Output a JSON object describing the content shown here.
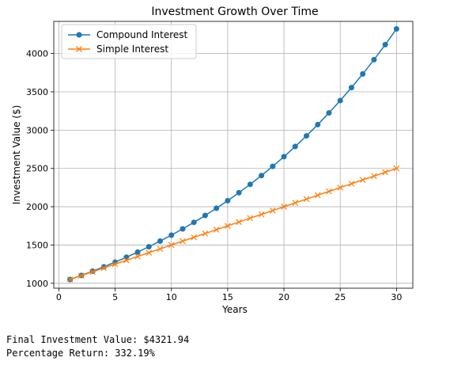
{
  "chart_data": {
    "type": "line",
    "title": "Investment Growth Over Time",
    "xlabel": "Years",
    "ylabel": "Investment Value ($)",
    "xlim": [
      -0.45,
      31.45
    ],
    "ylim": [
      936,
      4420
    ],
    "xticks": [
      0,
      5,
      10,
      15,
      20,
      25,
      30
    ],
    "yticks": [
      1000,
      1500,
      2000,
      2500,
      3000,
      3500,
      4000
    ],
    "grid": true,
    "legend_position": "top-left",
    "x": [
      1,
      2,
      3,
      4,
      5,
      6,
      7,
      8,
      9,
      10,
      11,
      12,
      13,
      14,
      15,
      16,
      17,
      18,
      19,
      20,
      21,
      22,
      23,
      24,
      25,
      26,
      27,
      28,
      29,
      30
    ],
    "series": [
      {
        "name": "Compound Interest",
        "color": "#1f77b4",
        "marker": "circle",
        "values": [
          1050,
          1102.5,
          1157.63,
          1215.51,
          1276.28,
          1340.1,
          1407.1,
          1477.46,
          1551.33,
          1628.89,
          1710.34,
          1795.86,
          1885.65,
          1979.93,
          2078.93,
          2182.87,
          2292.02,
          2406.62,
          2526.95,
          2653.3,
          2785.96,
          2925.26,
          3071.52,
          3225.1,
          3386.35,
          3555.67,
          3733.46,
          3920.13,
          4116.14,
          4321.94
        ]
      },
      {
        "name": "Simple Interest",
        "color": "#ff7f0e",
        "marker": "x",
        "values": [
          1050,
          1100,
          1150,
          1200,
          1250,
          1300,
          1350,
          1400,
          1450,
          1500,
          1550,
          1600,
          1650,
          1700,
          1750,
          1800,
          1850,
          1900,
          1950,
          2000,
          2050,
          2100,
          2150,
          2200,
          2250,
          2300,
          2350,
          2400,
          2450,
          2500
        ]
      }
    ]
  },
  "output": {
    "line1": "Final Investment Value: $4321.94",
    "line2": "Percentage Return: 332.19%"
  }
}
